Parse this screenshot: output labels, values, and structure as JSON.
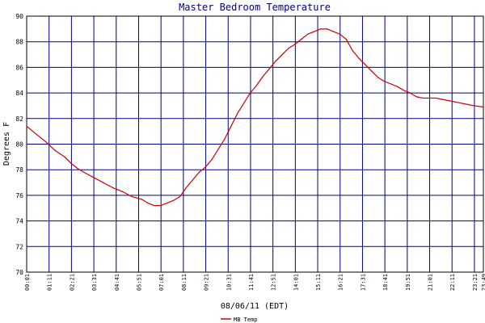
{
  "chart_data": {
    "type": "line",
    "title": "Master Bedroom Temperature",
    "xlabel": "08/06/11 (EDT)",
    "ylabel": "Degrees F",
    "ylim": [
      70,
      90
    ],
    "y_ticks": [
      "70",
      "72",
      "74",
      "76",
      "78",
      "80",
      "82",
      "84",
      "86",
      "88",
      "90"
    ],
    "x_ticks": [
      "00:01",
      "01:11",
      "02:21",
      "03:31",
      "04:41",
      "05:51",
      "07:01",
      "08:11",
      "09:21",
      "10:31",
      "11:41",
      "12:51",
      "14:01",
      "15:11",
      "16:21",
      "17:31",
      "18:41",
      "19:51",
      "21:01",
      "22:11",
      "23:21",
      "23:49"
    ],
    "grid": true,
    "legend_position": "bottom-center",
    "colors": {
      "line": "#cc0000",
      "grid": "#000080",
      "axis": "#000000",
      "text": "#000080"
    },
    "series": [
      {
        "name": "MB Temp",
        "x": [
          "00:01",
          "00:30",
          "01:00",
          "01:30",
          "02:00",
          "02:20",
          "02:40",
          "03:00",
          "03:30",
          "04:00",
          "04:30",
          "05:00",
          "05:30",
          "06:00",
          "06:20",
          "06:40",
          "07:00",
          "07:20",
          "07:40",
          "08:00",
          "08:20",
          "08:40",
          "09:00",
          "09:20",
          "09:40",
          "10:00",
          "10:20",
          "10:40",
          "11:00",
          "11:20",
          "11:40",
          "12:00",
          "12:20",
          "12:40",
          "13:00",
          "13:20",
          "13:40",
          "14:00",
          "14:20",
          "14:40",
          "15:00",
          "15:20",
          "15:40",
          "16:00",
          "16:20",
          "16:40",
          "17:00",
          "17:20",
          "17:40",
          "18:00",
          "18:20",
          "18:40",
          "19:00",
          "19:20",
          "19:40",
          "20:00",
          "20:20",
          "20:40",
          "21:00",
          "21:20",
          "21:40",
          "22:00",
          "22:20",
          "22:40",
          "23:00",
          "23:20",
          "23:49"
        ],
        "values": [
          81.4,
          80.8,
          80.2,
          79.5,
          79.0,
          78.5,
          78.1,
          77.8,
          77.4,
          77.0,
          76.6,
          76.3,
          75.9,
          75.7,
          75.4,
          75.2,
          75.2,
          75.4,
          75.6,
          75.9,
          76.6,
          77.2,
          77.8,
          78.2,
          78.8,
          79.6,
          80.4,
          81.4,
          82.4,
          83.2,
          84.0,
          84.6,
          85.3,
          85.9,
          86.5,
          87.0,
          87.5,
          87.8,
          88.2,
          88.6,
          88.8,
          89.0,
          89.0,
          88.8,
          88.6,
          88.2,
          87.3,
          86.7,
          86.2,
          85.7,
          85.2,
          84.9,
          84.7,
          84.5,
          84.2,
          84.0,
          83.7,
          83.6,
          83.6,
          83.6,
          83.5,
          83.4,
          83.3,
          83.2,
          83.1,
          83.0,
          82.9
        ]
      }
    ]
  }
}
